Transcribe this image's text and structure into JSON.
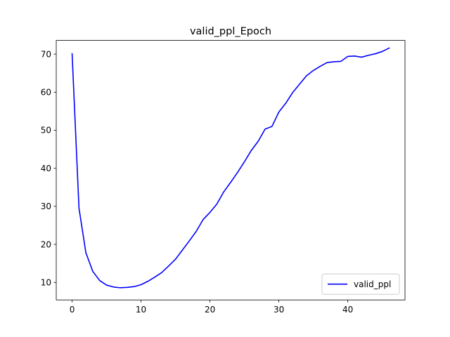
{
  "chart_data": {
    "type": "line",
    "title": "valid_ppl_Epoch",
    "xlabel": "",
    "ylabel": "",
    "xlim": [
      -2.3,
      48.3
    ],
    "ylim": [
      5.4,
      73.6
    ],
    "x_ticks": [
      0,
      10,
      20,
      30,
      40
    ],
    "y_ticks": [
      10,
      20,
      30,
      40,
      50,
      60,
      70
    ],
    "grid": false,
    "legend_position": "lower-right",
    "series": [
      {
        "name": "valid_ppl",
        "color": "#0000ff",
        "x": [
          0,
          1,
          2,
          3,
          4,
          5,
          6,
          7,
          8,
          9,
          10,
          11,
          12,
          13,
          14,
          15,
          16,
          17,
          18,
          19,
          20,
          21,
          22,
          23,
          24,
          25,
          26,
          27,
          28,
          29,
          30,
          31,
          32,
          33,
          34,
          35,
          36,
          37,
          38,
          39,
          40,
          41,
          42,
          43,
          44,
          45,
          46
        ],
        "y": [
          70.1,
          29.5,
          17.8,
          12.9,
          10.5,
          9.3,
          8.8,
          8.6,
          8.7,
          8.9,
          9.4,
          10.3,
          11.4,
          12.6,
          14.3,
          16.1,
          18.5,
          20.9,
          23.4,
          26.5,
          28.4,
          30.6,
          33.8,
          36.3,
          38.9,
          41.7,
          44.7,
          47.1,
          50.3,
          51.0,
          54.8,
          57.1,
          59.9,
          62.1,
          64.3,
          65.7,
          66.8,
          67.8,
          68.0,
          68.1,
          69.4,
          69.5,
          69.2,
          69.7,
          70.1,
          70.7,
          71.6
        ]
      }
    ]
  }
}
